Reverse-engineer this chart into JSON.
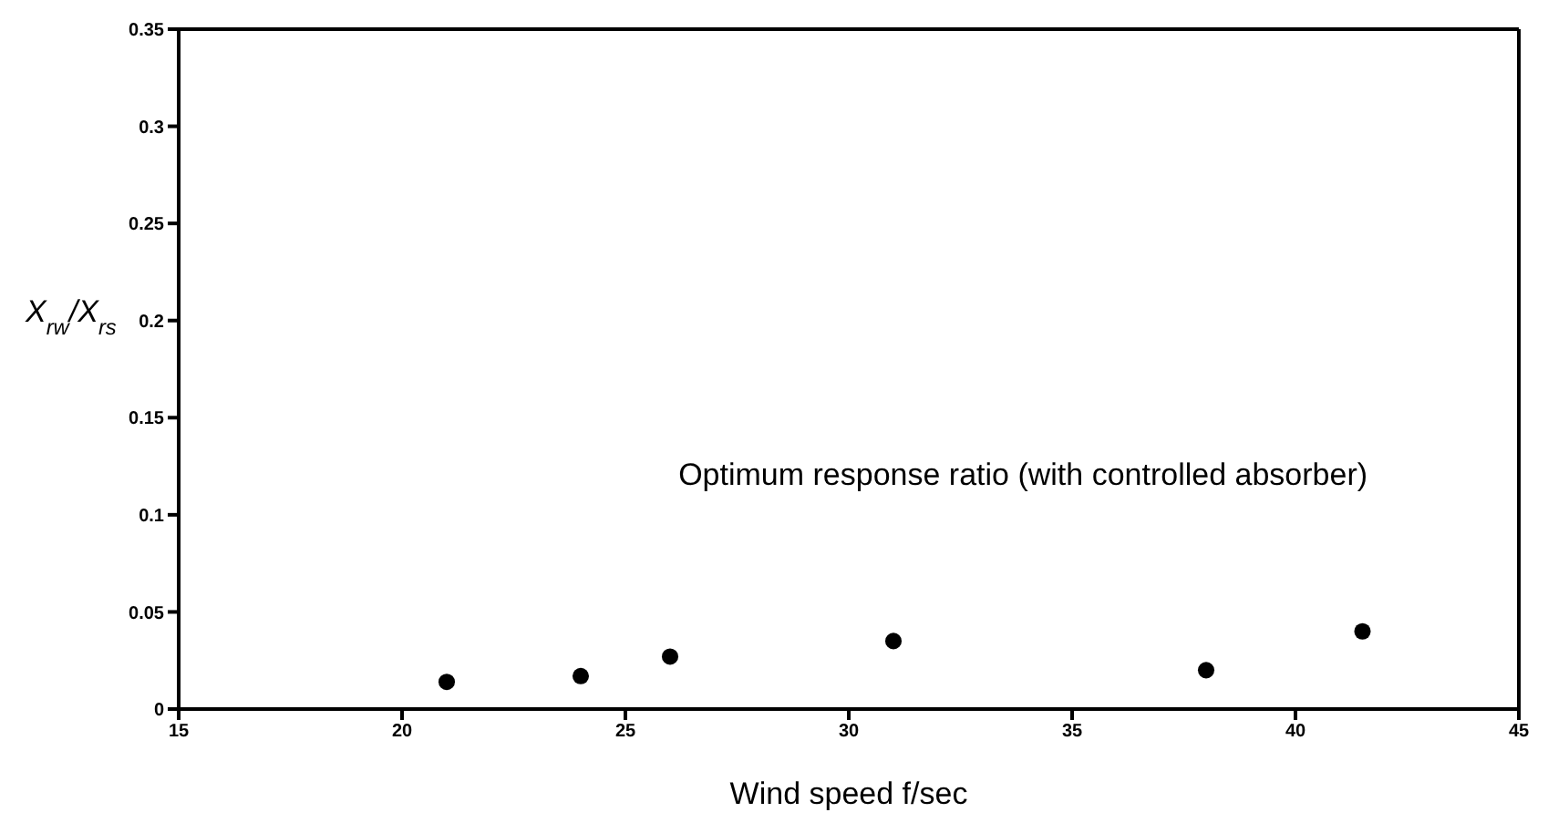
{
  "chart_data": {
    "type": "scatter",
    "xlabel": "Wind speed f/sec",
    "ylabel": "X$_{rw}$/X$_{rs}$",
    "x": [
      21,
      24,
      26,
      31,
      38,
      41.5
    ],
    "series": [
      {
        "color": "#000000",
        "values": [
          0.014,
          0.017,
          0.027,
          0.035,
          0.02,
          0.04
        ]
      }
    ],
    "xlim": [
      15,
      45
    ],
    "xticks": [
      15,
      20,
      25,
      30,
      35,
      40,
      45
    ],
    "ylim": [
      0,
      0.35
    ],
    "yticks": [
      0,
      0.05,
      0.1,
      0.15,
      0.2,
      0.25,
      0.3,
      0.35
    ],
    "annotations": [
      "Optimum response ratio (with controlled absorber)"
    ],
    "grid": false,
    "legend": false,
    "marker": "circle"
  }
}
